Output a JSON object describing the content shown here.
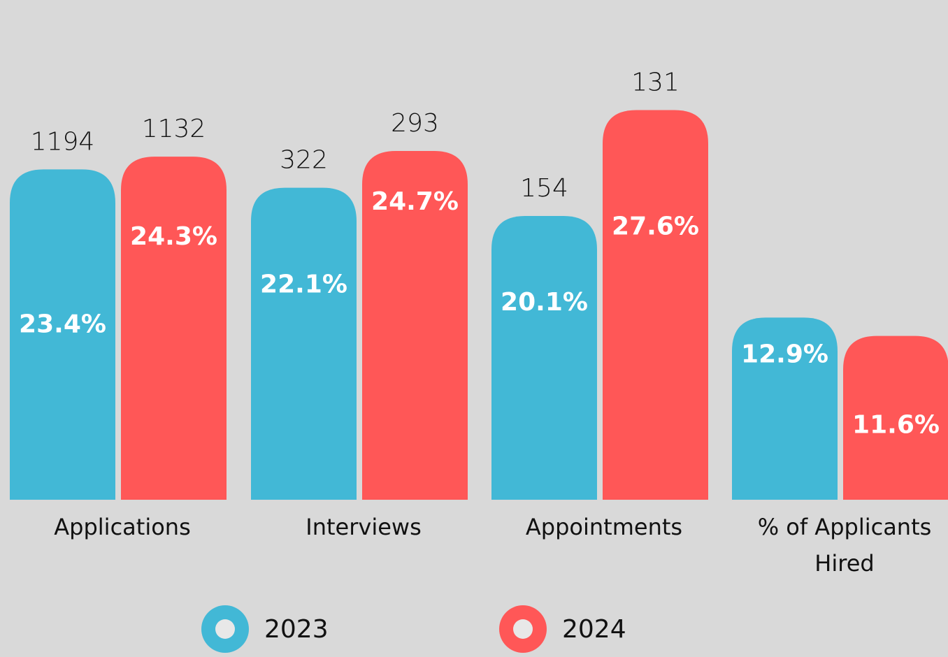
{
  "chart_data": {
    "type": "bar",
    "categories": [
      "Applications",
      "Interviews",
      "Appointments",
      "% of Applicants Hired"
    ],
    "series": [
      {
        "name": "2023",
        "color": "#42b8d6",
        "values": [
          23.4,
          22.1,
          20.1,
          12.9
        ],
        "value_labels": [
          "23.4%",
          "22.1%",
          "20.1%",
          "12.9%"
        ],
        "counts": [
          1194,
          322,
          154,
          null
        ]
      },
      {
        "name": "2024",
        "color": "#ff5757",
        "values": [
          24.3,
          24.7,
          27.6,
          11.6
        ],
        "value_labels": [
          "24.3%",
          "24.7%",
          "27.6%",
          "11.6%"
        ],
        "counts": [
          1132,
          293,
          131,
          null
        ]
      }
    ]
  }
}
